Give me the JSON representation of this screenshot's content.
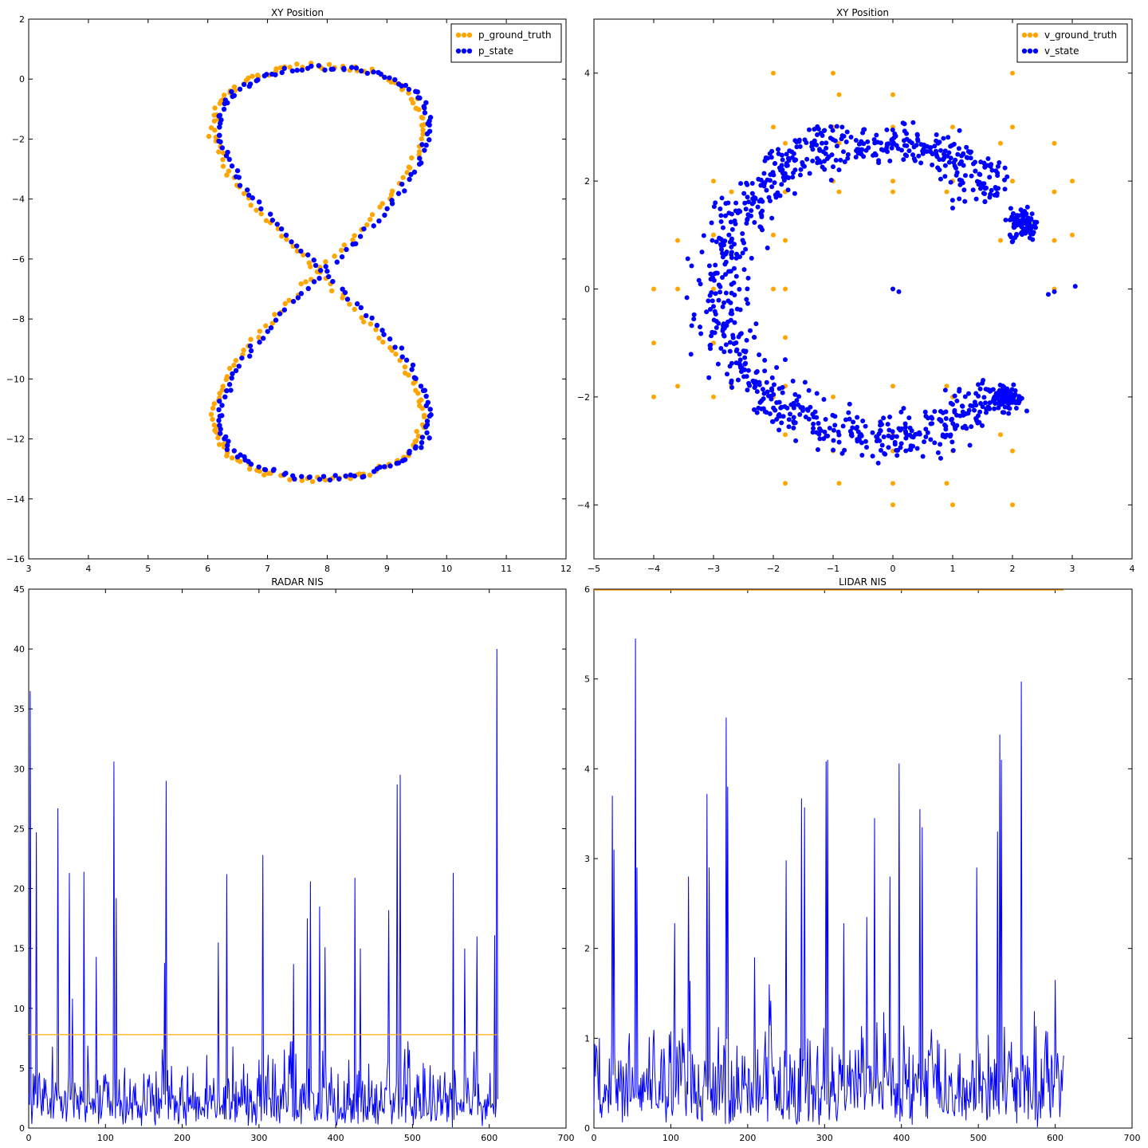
{
  "colors": {
    "ground_truth": "#ffa500",
    "state": "#0000ff",
    "nis_line": "#0000ff",
    "threshold": "#ffa500",
    "frame": "#000000"
  },
  "chart_data": [
    {
      "type": "scatter",
      "title": "XY Position",
      "xlim": [
        3,
        12
      ],
      "ylim": [
        -16,
        2
      ],
      "xticks": [
        3,
        4,
        5,
        6,
        7,
        8,
        9,
        10,
        11,
        12
      ],
      "yticks": [
        2,
        0,
        -2,
        -4,
        -6,
        -8,
        -10,
        -12,
        -14,
        -16
      ],
      "legend": {
        "placement": "upper-right"
      },
      "series": [
        {
          "name": "p_ground_truth",
          "color": "#ffa500",
          "curve": {
            "cx": 7.9,
            "cy": -6.4,
            "ax": 3.5,
            "ay": 6.9,
            "t_count": 240,
            "dx": -0.05,
            "dy": -0.05
          }
        },
        {
          "name": "p_state",
          "color": "#0000ff",
          "curve": {
            "cx": 7.9,
            "cy": -6.5,
            "ax": 3.5,
            "ay": 6.85,
            "t_count": 240,
            "dx": 0.05,
            "dy": 0.05
          }
        }
      ]
    },
    {
      "type": "scatter",
      "title": "XY Position",
      "xlim": [
        -5,
        4
      ],
      "ylim": [
        -5,
        5
      ],
      "xticks": [
        -5,
        -4,
        -3,
        -2,
        -1,
        0,
        1,
        2,
        3,
        4
      ],
      "yticks": [
        4,
        2,
        0,
        -2,
        -4
      ],
      "legend": {
        "placement": "upper-right"
      },
      "series": [
        {
          "name": "v_ground_truth",
          "color": "#ffa500",
          "points": [
            [
              -2,
              4
            ],
            [
              -1,
              4
            ],
            [
              2,
              4
            ],
            [
              -0.9,
              3.6
            ],
            [
              0,
              3.6
            ],
            [
              -2,
              3
            ],
            [
              -1,
              3
            ],
            [
              0,
              3
            ],
            [
              1,
              3
            ],
            [
              2,
              3
            ],
            [
              -1.8,
              2.7
            ],
            [
              -0.9,
              2.7
            ],
            [
              1.8,
              2.7
            ],
            [
              2.7,
              2.7
            ],
            [
              -3,
              2
            ],
            [
              -1,
              2
            ],
            [
              0,
              2
            ],
            [
              1,
              2
            ],
            [
              2,
              2
            ],
            [
              3,
              2
            ],
            [
              -2.7,
              1.8
            ],
            [
              -1.8,
              1.8
            ],
            [
              -0.9,
              1.8
            ],
            [
              0,
              1.8
            ],
            [
              0.9,
              1.8
            ],
            [
              2.7,
              1.8
            ],
            [
              -3,
              1
            ],
            [
              -2,
              1
            ],
            [
              3,
              1
            ],
            [
              -3.6,
              0.9
            ],
            [
              -2.7,
              0.9
            ],
            [
              -1.8,
              0.9
            ],
            [
              1.8,
              0.9
            ],
            [
              2.7,
              0.9
            ],
            [
              -4,
              0
            ],
            [
              -3.6,
              0
            ],
            [
              -3,
              0
            ],
            [
              -2,
              0
            ],
            [
              -1.8,
              0
            ],
            [
              0,
              0
            ],
            [
              2.7,
              0
            ],
            [
              -4,
              -1
            ],
            [
              -3,
              -1
            ],
            [
              -1.8,
              -0.9
            ],
            [
              -3.6,
              -1.8
            ],
            [
              -2.7,
              -1.8
            ],
            [
              -1.8,
              -1.8
            ],
            [
              0,
              -1.8
            ],
            [
              0.9,
              -1.8
            ],
            [
              -4,
              -2
            ],
            [
              -3,
              -2
            ],
            [
              -2,
              -2
            ],
            [
              -1,
              -2
            ],
            [
              1,
              -2
            ],
            [
              2,
              -2
            ],
            [
              -1.8,
              -2.7
            ],
            [
              -0.9,
              -2.7
            ],
            [
              0,
              -2.7
            ],
            [
              1.8,
              -2.7
            ],
            [
              -1,
              -3
            ],
            [
              0,
              -3
            ],
            [
              1,
              -3
            ],
            [
              2,
              -3
            ],
            [
              -1.8,
              -3.6
            ],
            [
              -0.9,
              -3.6
            ],
            [
              0,
              -3.6
            ],
            [
              0.9,
              -3.6
            ],
            [
              0,
              -4
            ],
            [
              1,
              -4
            ],
            [
              2,
              -4
            ]
          ]
        },
        {
          "name": "v_state",
          "color": "#0000ff",
          "c_shape": {
            "cx": 0.0,
            "cy": 0.0,
            "n": 900,
            "extra": [
              [
                0,
                0
              ],
              [
                0.1,
                -0.05
              ],
              [
                2.6,
                -0.1
              ],
              [
                2.7,
                -0.05
              ],
              [
                3.05,
                0.05
              ]
            ]
          }
        }
      ]
    },
    {
      "type": "line",
      "title": "RADAR NIS",
      "xlim": [
        0,
        700
      ],
      "ylim": [
        0,
        45
      ],
      "xticks": [
        0,
        100,
        200,
        300,
        400,
        500,
        600,
        700
      ],
      "yticks": [
        0,
        5,
        10,
        15,
        20,
        25,
        30,
        35,
        40,
        45
      ],
      "threshold": 7.8,
      "n_points": 612,
      "peaks": [
        [
          2,
          36.5
        ],
        [
          10,
          24.7
        ],
        [
          38,
          26.7
        ],
        [
          53,
          21.3
        ],
        [
          57,
          10.8
        ],
        [
          72,
          21.4
        ],
        [
          88,
          14.3
        ],
        [
          111,
          30.6
        ],
        [
          114,
          19.2
        ],
        [
          177,
          13.8
        ],
        [
          179,
          29.0
        ],
        [
          247,
          15.5
        ],
        [
          258,
          21.2
        ],
        [
          305,
          22.8
        ],
        [
          345,
          13.7
        ],
        [
          363,
          17.5
        ],
        [
          367,
          20.6
        ],
        [
          379,
          18.5
        ],
        [
          386,
          15.1
        ],
        [
          425,
          20.9
        ],
        [
          432,
          15.0
        ],
        [
          469,
          18.2
        ],
        [
          480,
          28.7
        ],
        [
          484,
          29.5
        ],
        [
          553,
          21.3
        ],
        [
          568,
          15.0
        ],
        [
          584,
          16.0
        ],
        [
          607,
          16.1
        ],
        [
          610,
          40.0
        ]
      ]
    },
    {
      "type": "line",
      "title": "LIDAR NIS",
      "xlim": [
        0,
        700
      ],
      "ylim": [
        0,
        6
      ],
      "xticks": [
        0,
        100,
        200,
        300,
        400,
        500,
        600,
        700
      ],
      "yticks": [
        0,
        1,
        2,
        3,
        4,
        5,
        6
      ],
      "threshold": 5.99,
      "n_points": 612,
      "peaks": [
        [
          24,
          3.7
        ],
        [
          26,
          3.1
        ],
        [
          54,
          5.45
        ],
        [
          56,
          2.9
        ],
        [
          105,
          2.28
        ],
        [
          123,
          2.8
        ],
        [
          147,
          3.72
        ],
        [
          150,
          2.9
        ],
        [
          172,
          4.57
        ],
        [
          174,
          3.8
        ],
        [
          209,
          1.9
        ],
        [
          228,
          1.6
        ],
        [
          250,
          2.98
        ],
        [
          270,
          3.67
        ],
        [
          274,
          3.57
        ],
        [
          302,
          4.08
        ],
        [
          304,
          4.1
        ],
        [
          325,
          2.28
        ],
        [
          355,
          2.35
        ],
        [
          365,
          3.45
        ],
        [
          385,
          2.8
        ],
        [
          397,
          4.06
        ],
        [
          424,
          3.55
        ],
        [
          427,
          3.35
        ],
        [
          498,
          2.9
        ],
        [
          525,
          3.3
        ],
        [
          528,
          4.38
        ],
        [
          530,
          4.1
        ],
        [
          556,
          4.97
        ],
        [
          573,
          1.3
        ],
        [
          600,
          1.65
        ]
      ]
    }
  ]
}
